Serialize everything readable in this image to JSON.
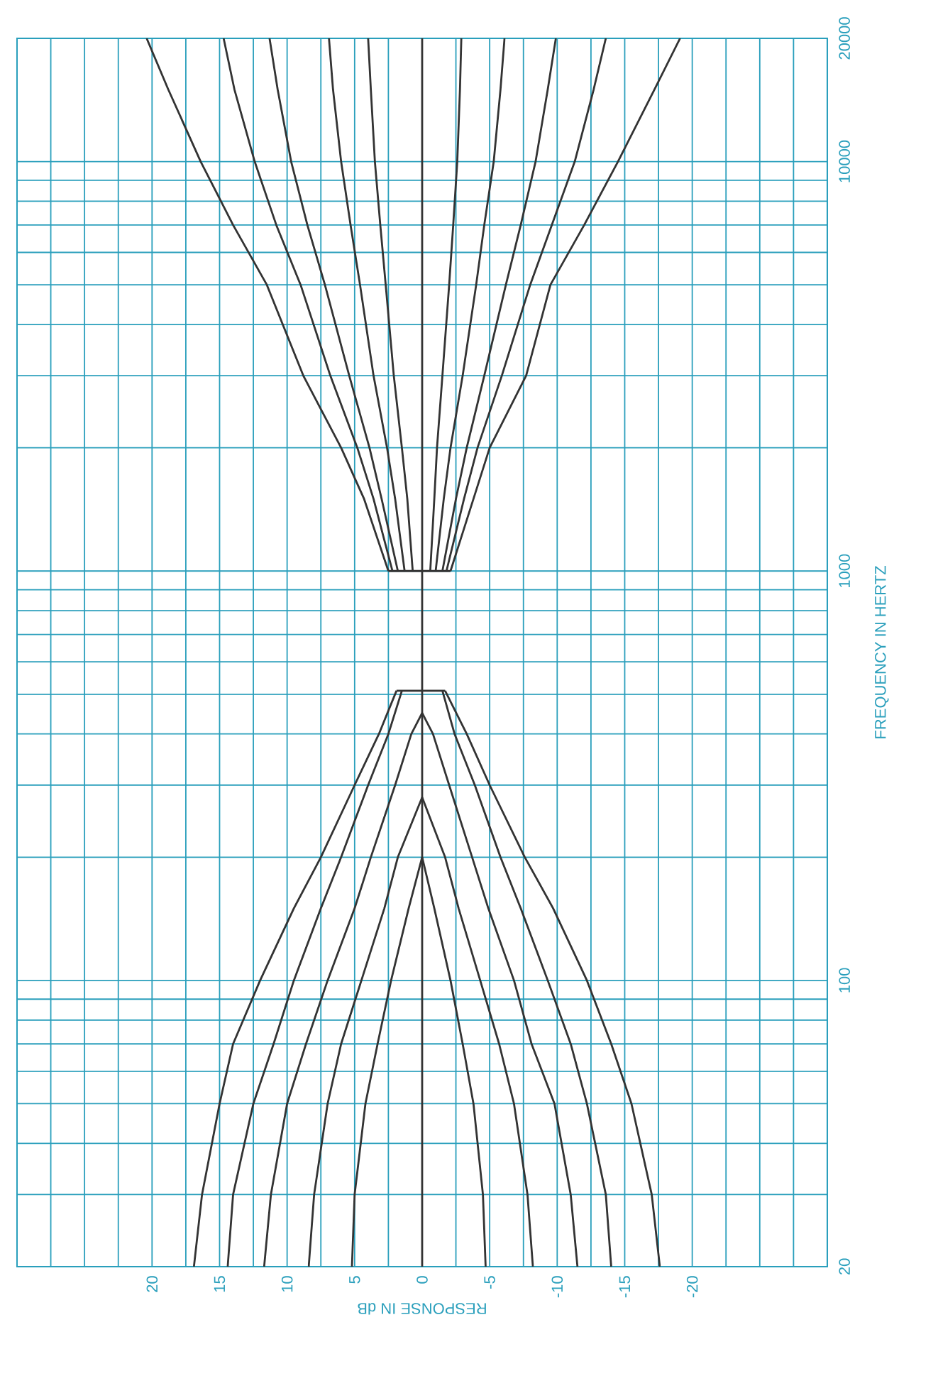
{
  "chart_data": {
    "type": "line",
    "xlabel": "RESPONSE IN dB",
    "ylabel": "FREQUENCY IN HERTZ",
    "log": "y",
    "grid": true,
    "xlim": [
      30,
      -30
    ],
    "ylim": [
      20,
      20000
    ],
    "xticks": [
      {
        "value": 30,
        "label": null
      },
      {
        "value": 27.5,
        "label": null
      },
      {
        "value": 25,
        "label": null
      },
      {
        "value": 22.5,
        "label": null
      },
      20,
      {
        "value": 17.5,
        "label": null
      },
      15,
      {
        "value": 12.5,
        "label": null
      },
      10,
      {
        "value": 7.5,
        "label": null
      },
      5,
      {
        "value": 2.5,
        "label": null
      },
      0,
      {
        "value": -2.5,
        "label": null
      },
      -5,
      {
        "value": -7.5,
        "label": null
      },
      -10,
      {
        "value": -12.5,
        "label": null
      },
      -15,
      {
        "value": -17.5,
        "label": null
      },
      -20,
      {
        "value": -22.5,
        "label": null
      },
      {
        "value": -25,
        "label": null
      },
      {
        "value": -27.5,
        "label": null
      },
      {
        "value": -30,
        "label": null
      }
    ],
    "yticks": [
      20,
      {
        "value": 30,
        "label": null
      },
      {
        "value": 40,
        "label": null
      },
      {
        "value": 50,
        "label": null
      },
      {
        "value": 60,
        "label": null
      },
      {
        "value": 70,
        "label": null
      },
      {
        "value": 80,
        "label": null
      },
      {
        "value": 90,
        "label": null
      },
      100,
      {
        "value": 200,
        "label": null
      },
      {
        "value": 300,
        "label": null
      },
      {
        "value": 400,
        "label": null
      },
      {
        "value": 500,
        "label": null
      },
      {
        "value": 600,
        "label": null
      },
      {
        "value": 700,
        "label": null
      },
      {
        "value": 800,
        "label": null
      },
      {
        "value": 900,
        "label": null
      },
      1000,
      {
        "value": 2000,
        "label": null
      },
      {
        "value": 3000,
        "label": null
      },
      {
        "value": 4000,
        "label": null
      },
      {
        "value": 5000,
        "label": null
      },
      {
        "value": 6000,
        "label": null
      },
      {
        "value": 7000,
        "label": null
      },
      {
        "value": 8000,
        "label": null
      },
      {
        "value": 9000,
        "label": null
      },
      10000,
      20000
    ],
    "series": [
      {
        "color": "#333333",
        "x": [
          0,
          0
        ],
        "values": [
          20,
          20000
        ]
      },
      {
        "color": "#333333",
        "x": [
          16.9,
          16.3,
          15,
          14,
          12,
          9.5,
          7.5,
          5,
          3.2,
          1.9
        ],
        "values": [
          20,
          30,
          50,
          70,
          100,
          150,
          200,
          300,
          400,
          510
        ]
      },
      {
        "color": "#333333",
        "x": [
          14.4,
          14,
          12.5,
          11,
          9.5,
          7.5,
          6,
          4,
          2.5,
          1.5
        ],
        "values": [
          20,
          30,
          50,
          70,
          100,
          150,
          200,
          300,
          400,
          510
        ]
      },
      {
        "color": "#333333",
        "x": [
          11.7,
          11.2,
          10,
          8.6,
          7,
          5,
          3.8,
          2,
          0.8,
          0
        ],
        "values": [
          20,
          30,
          50,
          70,
          100,
          150,
          200,
          300,
          400,
          450
        ]
      },
      {
        "color": "#333333",
        "x": [
          8.4,
          8,
          7,
          6,
          4.5,
          2.8,
          1.8,
          0
        ],
        "values": [
          20,
          30,
          50,
          70,
          100,
          150,
          200,
          280
        ]
      },
      {
        "color": "#333333",
        "x": [
          5.2,
          5,
          4.2,
          3.3,
          2.3,
          1,
          0
        ],
        "values": [
          20,
          30,
          50,
          70,
          100,
          150,
          200
        ]
      },
      {
        "color": "#333333",
        "x": [
          -4.7,
          -4.5,
          -3.8,
          -3,
          -2.1,
          -0.9,
          0
        ],
        "values": [
          20,
          30,
          50,
          70,
          100,
          150,
          200
        ]
      },
      {
        "color": "#333333",
        "x": [
          -8.2,
          -7.8,
          -6.8,
          -5.7,
          -4.3,
          -2.7,
          -1.7,
          0
        ],
        "values": [
          20,
          30,
          50,
          70,
          100,
          150,
          200,
          280
        ]
      },
      {
        "color": "#333333",
        "x": [
          -11.5,
          -11,
          -9.8,
          -8.1,
          -6.8,
          -4.9,
          -3.7,
          -2,
          -0.8,
          0
        ],
        "values": [
          20,
          30,
          50,
          70,
          100,
          150,
          200,
          300,
          400,
          450
        ]
      },
      {
        "color": "#333333",
        "x": [
          -14,
          -13.6,
          -12.2,
          -11,
          -9.3,
          -7.3,
          -5.8,
          -3.9,
          -2.4,
          -1.5
        ],
        "values": [
          20,
          30,
          50,
          70,
          100,
          150,
          200,
          300,
          400,
          510
        ]
      },
      {
        "color": "#333333",
        "x": [
          -17.6,
          -17,
          -15.5,
          -14,
          -12.2,
          -9.7,
          -7.6,
          -5,
          -3.3,
          -1.7
        ],
        "values": [
          20,
          30,
          50,
          70,
          100,
          150,
          200,
          300,
          400,
          510
        ]
      },
      {
        "color": "#333333",
        "x": [
          1.9,
          -1.7
        ],
        "values": [
          510,
          510
        ]
      },
      {
        "color": "#333333",
        "x": [
          2.5,
          -2.1
        ],
        "values": [
          1000,
          1000
        ]
      },
      {
        "color": "#333333",
        "x": [
          2.5,
          4.3,
          6,
          8.8,
          11.5,
          14,
          16.4,
          18.8,
          20.4
        ],
        "values": [
          1000,
          1500,
          2000,
          3000,
          5000,
          7000,
          10000,
          15000,
          20000
        ]
      },
      {
        "color": "#333333",
        "x": [
          2.2,
          3.6,
          4.8,
          6.8,
          9,
          10.8,
          12.4,
          13.9,
          14.7
        ],
        "values": [
          1000,
          1500,
          2000,
          3000,
          5000,
          7000,
          10000,
          15000,
          20000
        ]
      },
      {
        "color": "#333333",
        "x": [
          1.8,
          3,
          3.9,
          5.4,
          7.2,
          8.5,
          9.7,
          10.7,
          11.3
        ],
        "values": [
          1000,
          1500,
          2000,
          3000,
          5000,
          7000,
          10000,
          15000,
          20000
        ]
      },
      {
        "color": "#333333",
        "x": [
          1.3,
          2,
          2.6,
          3.6,
          4.6,
          5.3,
          6,
          6.6,
          6.9
        ],
        "values": [
          1000,
          1500,
          2000,
          3000,
          5000,
          7000,
          10000,
          15000,
          20000
        ]
      },
      {
        "color": "#333333",
        "x": [
          0.7,
          1.1,
          1.5,
          2.1,
          2.7,
          3.1,
          3.5,
          3.8,
          4
        ],
        "values": [
          1000,
          1500,
          2000,
          3000,
          5000,
          7000,
          10000,
          15000,
          20000
        ]
      },
      {
        "color": "#333333",
        "x": [
          -0.6,
          -0.9,
          -1.1,
          -1.5,
          -2,
          -2.3,
          -2.6,
          -2.8,
          -2.9
        ],
        "values": [
          1000,
          1500,
          2000,
          3000,
          5000,
          7000,
          10000,
          15000,
          20000
        ]
      },
      {
        "color": "#333333",
        "x": [
          -1,
          -1.6,
          -2.1,
          -3,
          -4,
          -4.6,
          -5.3,
          -5.8,
          -6.1
        ],
        "values": [
          1000,
          1500,
          2000,
          3000,
          5000,
          7000,
          10000,
          15000,
          20000
        ]
      },
      {
        "color": "#333333",
        "x": [
          -1.5,
          -2.5,
          -3.3,
          -4.6,
          -6.2,
          -7.3,
          -8.4,
          -9.3,
          -9.9
        ],
        "values": [
          1000,
          1500,
          2000,
          3000,
          5000,
          7000,
          10000,
          15000,
          20000
        ]
      },
      {
        "color": "#333333",
        "x": [
          -1.8,
          -3.1,
          -4.1,
          -5.9,
          -8,
          -9.6,
          -11.3,
          -12.7,
          -13.6
        ],
        "values": [
          1000,
          1500,
          2000,
          3000,
          5000,
          7000,
          10000,
          15000,
          20000
        ]
      },
      {
        "color": "#333333",
        "x": [
          -2.1,
          -3.8,
          -5,
          -7.7,
          -9.5,
          -12,
          -14.5,
          -17.2,
          -19.1
        ],
        "values": [
          1000,
          1500,
          2000,
          3000,
          5000,
          7000,
          10000,
          15000,
          20000
        ]
      }
    ]
  }
}
